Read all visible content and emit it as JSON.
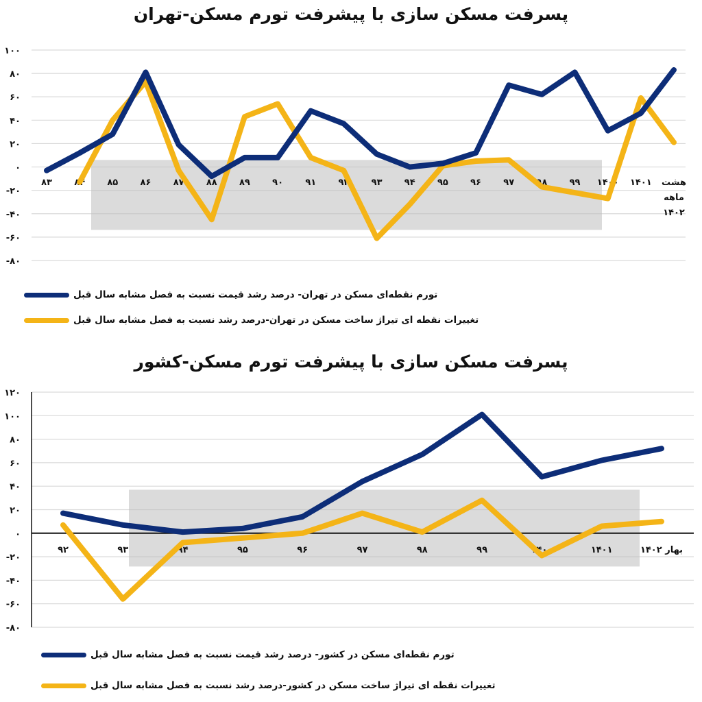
{
  "chart_data": [
    {
      "type": "line",
      "title": "پسرفت مسکن سازی با پیشرفت تورم مسکن-تهران",
      "categories": [
        "۸۳",
        "۸۴",
        "۸۵",
        "۸۶",
        "۸۷",
        "۸۸",
        "۸۹",
        "۹۰",
        "۹۱",
        "۹۲",
        "۹۳",
        "۹۴",
        "۹۵",
        "۹۶",
        "۹۷",
        "۹۸",
        "۹۹",
        "۱۴۰۰",
        "۱۴۰۱",
        "هشت ماهه ۱۴۰۲"
      ],
      "ylim": [
        -80,
        100
      ],
      "yticks": [
        100,
        80,
        60,
        40,
        20,
        0,
        -20,
        -40,
        -60,
        -80
      ],
      "ytick_labels": [
        "۱۰۰",
        "۸۰",
        "۶۰",
        "۴۰",
        "۲۰",
        "۰",
        "-۲۰",
        "-۴۰",
        "-۶۰",
        "-۸۰"
      ],
      "grid": true,
      "legend_position": "bottom",
      "series": [
        {
          "name": "تورم نقطه‌ای مسکن در تهران- درصد رشد قیمت نسبت به فصل مشابه سال قبل",
          "color": "#0d2d78",
          "values": [
            -3,
            12,
            28,
            81,
            19,
            -8,
            8,
            8,
            48,
            37,
            11,
            0,
            3,
            12,
            70,
            62,
            81,
            31,
            46,
            83
          ]
        },
        {
          "name": "تغییرات نقطه ای تیراژ ساخت مسکن در تهران-درصد رشد نسبت به فصل مشابه سال قبل",
          "color": "#f4b417",
          "values": [
            null,
            -13,
            40,
            73,
            -3,
            -45,
            43,
            54,
            8,
            -3,
            -61,
            -32,
            1,
            5,
            6,
            -17,
            -22,
            -27,
            59,
            21
          ]
        }
      ]
    },
    {
      "type": "line",
      "title": "پسرفت مسکن سازی با پیشرفت تورم مسکن-کشور",
      "categories": [
        "۹۲",
        "۹۳",
        "۹۴",
        "۹۵",
        "۹۶",
        "۹۷",
        "۹۸",
        "۹۹",
        "۱۴۰۰",
        "۱۴۰۱",
        "بهار ۱۴۰۲"
      ],
      "ylim": [
        -80,
        120
      ],
      "yticks": [
        120,
        100,
        80,
        60,
        40,
        20,
        0,
        -20,
        -40,
        -60,
        -80
      ],
      "ytick_labels": [
        "۱۲۰",
        "۱۰۰",
        "۸۰",
        "۶۰",
        "۴۰",
        "۲۰",
        "۰",
        "-۲۰",
        "-۴۰",
        "-۶۰",
        "-۸۰"
      ],
      "grid": true,
      "legend_position": "bottom",
      "series": [
        {
          "name": "تورم نقطه‌ای مسکن در کشور- درصد رشد قیمت نسبت به فصل مشابه سال قبل",
          "color": "#0d2d78",
          "values": [
            17,
            7,
            1,
            4,
            14,
            44,
            67,
            101,
            48,
            62,
            72
          ]
        },
        {
          "name": "تغییرات نقطه ای تیراژ ساخت مسکن در کشور-درصد رشد نسبت به فصل مشابه سال قبل",
          "color": "#f4b417",
          "values": [
            7,
            -56,
            -8,
            -4,
            0,
            17,
            1,
            28,
            -19,
            6,
            10
          ]
        }
      ]
    }
  ]
}
